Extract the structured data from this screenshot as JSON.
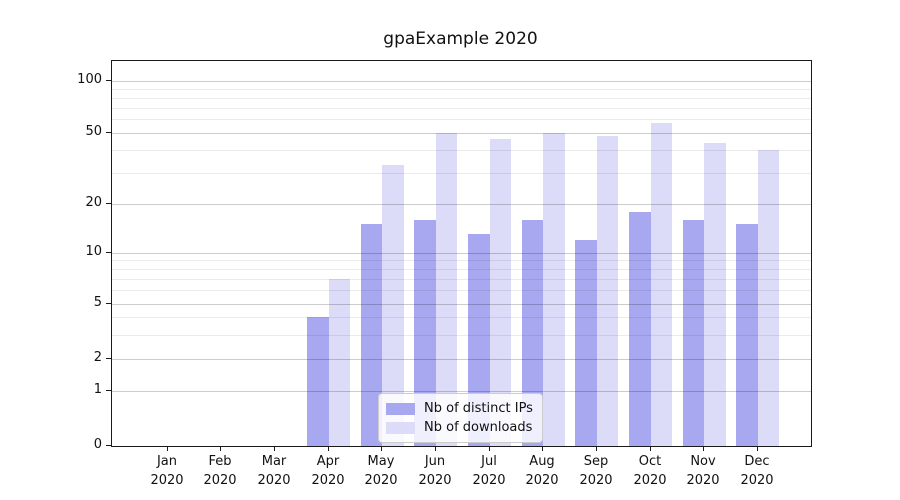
{
  "chart_data": {
    "type": "bar",
    "title": "gpaExample 2020",
    "categories": [
      "Jan 2020",
      "Feb 2020",
      "Mar 2020",
      "Apr 2020",
      "May 2020",
      "Jun 2020",
      "Jul 2020",
      "Aug 2020",
      "Sep 2020",
      "Oct 2020",
      "Nov 2020",
      "Dec 2020"
    ],
    "series": [
      {
        "name": "Nb of distinct IPs",
        "color": "#a8a8f0",
        "values": [
          null,
          null,
          null,
          4,
          15,
          16,
          13,
          16,
          12,
          18,
          16,
          15
        ]
      },
      {
        "name": "Nb of downloads",
        "color": "#dcdcf8",
        "values": [
          null,
          null,
          null,
          7,
          33,
          50,
          46,
          50,
          48,
          57,
          44,
          40
        ]
      }
    ],
    "y_axis": {
      "scale": "log-like",
      "ticks": [
        0,
        1,
        2,
        5,
        10,
        20,
        50,
        100
      ],
      "minor_gridlines": [
        3,
        4,
        6,
        7,
        8,
        9,
        30,
        40,
        60,
        70,
        80,
        90
      ],
      "range": [
        0,
        110
      ]
    },
    "x_axis": {
      "label_lines": 2
    },
    "legend": {
      "position": "lower-center"
    },
    "grid": true
  }
}
